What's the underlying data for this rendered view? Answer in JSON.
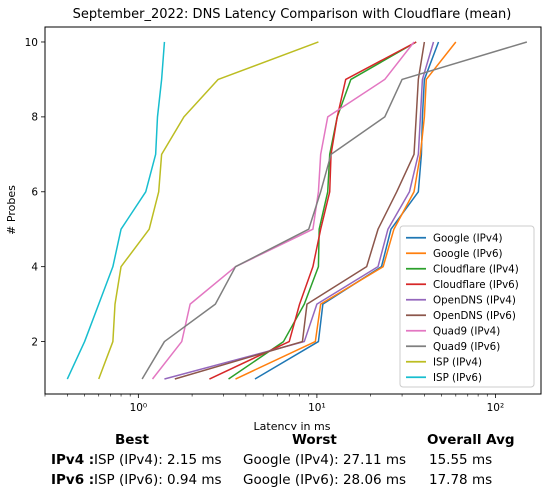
{
  "chart_data": {
    "type": "line",
    "title": "September_2022: DNS Latency Comparison with Cloudflare (mean)",
    "xlabel": "Latency in ms",
    "ylabel": "# Probes",
    "xscale": "log",
    "xlim": [
      0.3,
      180
    ],
    "ylim": [
      0.6,
      10.4
    ],
    "x_ticks": [
      {
        "value": 1,
        "label": "10⁰"
      },
      {
        "value": 10,
        "label": "10¹"
      },
      {
        "value": 100,
        "label": "10²"
      }
    ],
    "y_ticks": [
      2,
      4,
      6,
      8,
      10
    ],
    "grid": false,
    "legend_position": "lower-right",
    "series": [
      {
        "name": "Google (IPv4)",
        "color": "#1f77b4",
        "points": [
          [
            4.5,
            1
          ],
          [
            10.2,
            2
          ],
          [
            10.8,
            3
          ],
          [
            23,
            4
          ],
          [
            26,
            5
          ],
          [
            37,
            6
          ],
          [
            38.5,
            7
          ],
          [
            39,
            8
          ],
          [
            40,
            9
          ],
          [
            48,
            10
          ]
        ]
      },
      {
        "name": "Google (IPv6)",
        "color": "#ff7f0e",
        "points": [
          [
            3.5,
            1
          ],
          [
            9.8,
            2
          ],
          [
            10.5,
            3
          ],
          [
            23.5,
            4
          ],
          [
            27,
            5
          ],
          [
            35,
            6
          ],
          [
            38,
            7
          ],
          [
            40,
            8
          ],
          [
            41,
            9
          ],
          [
            60,
            10
          ]
        ]
      },
      {
        "name": "Cloudflare (IPv4)",
        "color": "#2ca02c",
        "points": [
          [
            3.2,
            1
          ],
          [
            6.5,
            2
          ],
          [
            8.5,
            3
          ],
          [
            10.2,
            4
          ],
          [
            10.3,
            5
          ],
          [
            11.5,
            6
          ],
          [
            11.8,
            7
          ],
          [
            13,
            8
          ],
          [
            15.5,
            9
          ],
          [
            36,
            10
          ]
        ]
      },
      {
        "name": "Cloudflare (IPv6)",
        "color": "#d62728",
        "points": [
          [
            2.5,
            1
          ],
          [
            7,
            2
          ],
          [
            8,
            3
          ],
          [
            9.5,
            4
          ],
          [
            10.5,
            5
          ],
          [
            11.8,
            6
          ],
          [
            12,
            7
          ],
          [
            13,
            8
          ],
          [
            14.5,
            9
          ],
          [
            36,
            10
          ]
        ]
      },
      {
        "name": "OpenDNS (IPv4)",
        "color": "#9467bd",
        "points": [
          [
            1.4,
            1
          ],
          [
            8.5,
            2
          ],
          [
            10,
            3
          ],
          [
            22,
            4
          ],
          [
            25,
            5
          ],
          [
            33,
            6
          ],
          [
            37,
            7
          ],
          [
            38,
            8
          ],
          [
            39,
            9
          ],
          [
            45,
            10
          ]
        ]
      },
      {
        "name": "OpenDNS (IPv6)",
        "color": "#8c564b",
        "points": [
          [
            1.6,
            1
          ],
          [
            8.3,
            2
          ],
          [
            8.8,
            3
          ],
          [
            19,
            4
          ],
          [
            22,
            5
          ],
          [
            28,
            6
          ],
          [
            35,
            7
          ],
          [
            36,
            8
          ],
          [
            37,
            9
          ],
          [
            40,
            10
          ]
        ]
      },
      {
        "name": "Quad9 (IPv4)",
        "color": "#e377c2",
        "points": [
          [
            1.2,
            1
          ],
          [
            1.75,
            2
          ],
          [
            1.95,
            3
          ],
          [
            3.5,
            4
          ],
          [
            9.5,
            5
          ],
          [
            10.2,
            6
          ],
          [
            10.5,
            7
          ],
          [
            11.5,
            8
          ],
          [
            24,
            9
          ],
          [
            35,
            10
          ]
        ]
      },
      {
        "name": "Quad9 (IPv6)",
        "color": "#7f7f7f",
        "points": [
          [
            1.05,
            1
          ],
          [
            1.4,
            2
          ],
          [
            2.7,
            3
          ],
          [
            3.5,
            4
          ],
          [
            9,
            5
          ],
          [
            10.5,
            6
          ],
          [
            12,
            7
          ],
          [
            24,
            8
          ],
          [
            30,
            9
          ],
          [
            150,
            10
          ]
        ]
      },
      {
        "name": "ISP (IPv4)",
        "color": "#bcbd22",
        "points": [
          [
            0.6,
            1
          ],
          [
            0.72,
            2
          ],
          [
            0.74,
            3
          ],
          [
            0.8,
            4
          ],
          [
            1.15,
            5
          ],
          [
            1.3,
            6
          ],
          [
            1.35,
            7
          ],
          [
            1.8,
            8
          ],
          [
            2.8,
            9
          ],
          [
            10.2,
            10
          ]
        ]
      },
      {
        "name": "ISP (IPv6)",
        "color": "#17becf",
        "points": [
          [
            0.4,
            1
          ],
          [
            0.5,
            2
          ],
          [
            0.6,
            3
          ],
          [
            0.72,
            4
          ],
          [
            0.8,
            5
          ],
          [
            1.1,
            6
          ],
          [
            1.25,
            7
          ],
          [
            1.28,
            8
          ],
          [
            1.35,
            9
          ],
          [
            1.4,
            10
          ]
        ]
      }
    ]
  },
  "summary": {
    "headers": {
      "best": "Best",
      "worst": "Worst",
      "avg": "Overall Avg"
    },
    "rows": [
      {
        "label": "IPv4 :",
        "best": "ISP (IPv4): 2.15 ms",
        "worst": "Google (IPv4): 27.11 ms",
        "avg": "15.55 ms"
      },
      {
        "label": "IPv6 :",
        "best": "ISP (IPv6): 0.94 ms",
        "worst": "Google (IPv6): 28.06 ms",
        "avg": "17.78 ms"
      }
    ]
  }
}
